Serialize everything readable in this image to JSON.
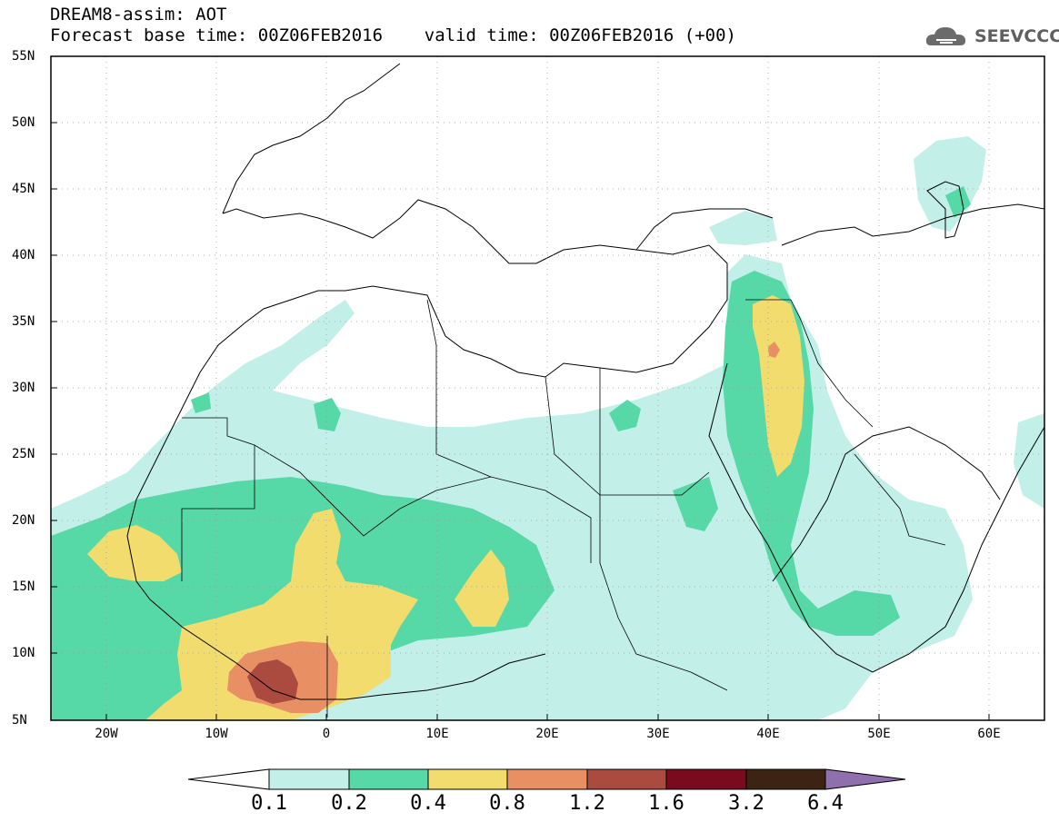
{
  "header": {
    "title_line1": "DREAM8-assim: AOT",
    "title_line2": "Forecast base time: 00Z06FEB2016    valid time: 00Z06FEB2016 (+00)",
    "logo_text": "SEEVCCC",
    "logo_icon": "cloud-icon"
  },
  "axes": {
    "lat_labels": [
      "55N",
      "50N",
      "45N",
      "40N",
      "35N",
      "30N",
      "25N",
      "20N",
      "15N",
      "10N",
      "5N"
    ],
    "lon_labels": [
      "20W",
      "10W",
      "0",
      "10E",
      "20E",
      "30E",
      "40E",
      "50E",
      "60E"
    ]
  },
  "colorbar": {
    "labels": [
      "0.1",
      "0.2",
      "0.4",
      "0.8",
      "1.2",
      "1.6",
      "3.2",
      "6.4"
    ],
    "colors": [
      "#ffffff",
      "#c2efe8",
      "#56d8a7",
      "#f2dc6e",
      "#e98f64",
      "#ab4a3e",
      "#7a0b1e",
      "#3c2313",
      "#8f6fad"
    ]
  },
  "map_colors": {
    "c1": "#c2efe8",
    "c2": "#56d8a7",
    "c3": "#f2dc6e",
    "c4": "#e98f64",
    "c5": "#ab4a3e"
  }
}
